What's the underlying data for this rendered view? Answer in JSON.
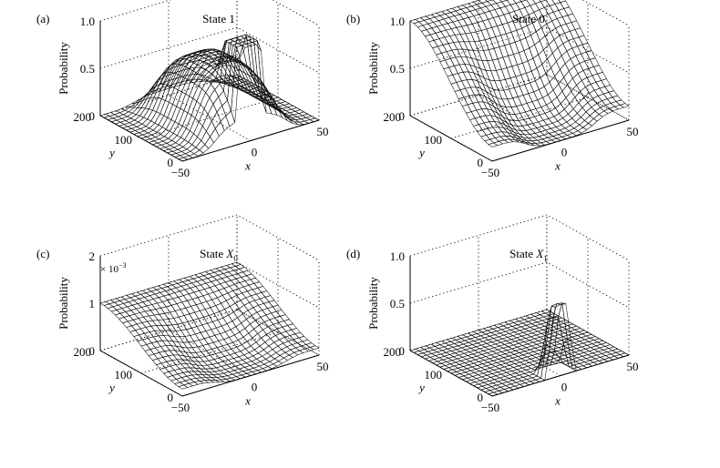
{
  "chart_data": [
    {
      "type": "surface",
      "panel_label": "(a)",
      "title": "State 1",
      "title_subscript": "",
      "xlabel": "x",
      "ylabel": "y",
      "zlabel": "Probability",
      "x_ticks": [
        "−50",
        "0",
        "50"
      ],
      "y_ticks": [
        "0",
        "100",
        "200"
      ],
      "z_ticks": [
        "0",
        "0.5",
        "1.0"
      ],
      "xlim": [
        -50,
        50
      ],
      "ylim": [
        0,
        200
      ],
      "zlim": [
        0,
        1
      ],
      "z_multiplier": "",
      "shape": "dome with narrow peak near x≈0 reaching 1.0",
      "peak_value": 1.0,
      "plateau_value": 0.65,
      "grid": true,
      "surface_color": "#9a9a9a"
    },
    {
      "type": "surface",
      "panel_label": "(b)",
      "title": "State 0",
      "title_subscript": "",
      "xlabel": "x",
      "ylabel": "y",
      "zlabel": "Probability",
      "x_ticks": [
        "−50",
        "0",
        "50"
      ],
      "y_ticks": [
        "0",
        "100",
        "200"
      ],
      "z_ticks": [
        "0",
        "0.5",
        "1.0"
      ],
      "xlim": [
        -50,
        50
      ],
      "ylim": [
        0,
        200
      ],
      "zlim": [
        0,
        1
      ],
      "z_multiplier": "",
      "shape": "bowl: near 1.0 at edges, dips to ~0 in centre",
      "edge_value": 1.0,
      "center_value": 0.0,
      "grid": true,
      "surface_color": "#a3a3a3"
    },
    {
      "type": "surface",
      "panel_label": "(c)",
      "title": "State X",
      "title_subscript": "0",
      "xlabel": "x",
      "ylabel": "y",
      "zlabel": "Probability",
      "x_ticks": [
        "−50",
        "0",
        "50"
      ],
      "y_ticks": [
        "0",
        "100",
        "200"
      ],
      "z_ticks": [
        "0",
        "1",
        "2"
      ],
      "xlim": [
        -50,
        50
      ],
      "ylim": [
        0,
        200
      ],
      "zlim": [
        0,
        2
      ],
      "z_multiplier": "× 10",
      "z_multiplier_exp": "−3",
      "shape": "bowl: ~1 (×10^−3) at edges, ~0 in centre",
      "edge_value": 1.0,
      "center_value": 0.0,
      "grid": true,
      "surface_color": "#9e9e9e"
    },
    {
      "type": "surface",
      "panel_label": "(d)",
      "title": "State X",
      "title_subscript": "1",
      "xlabel": "x",
      "ylabel": "y",
      "zlabel": "Probability",
      "x_ticks": [
        "−50",
        "0",
        "50"
      ],
      "y_ticks": [
        "0",
        "100",
        "200"
      ],
      "z_ticks": [
        "0",
        "0.5",
        "1.0"
      ],
      "xlim": [
        -50,
        50
      ],
      "ylim": [
        0,
        200
      ],
      "zlim": [
        0,
        1
      ],
      "z_multiplier": "",
      "shape": "flat ~0 with narrow spike near x≈0, y≈0 reaching ~0.75",
      "peak_value": 0.75,
      "grid": true,
      "surface_color": "#3a3a3a"
    }
  ]
}
